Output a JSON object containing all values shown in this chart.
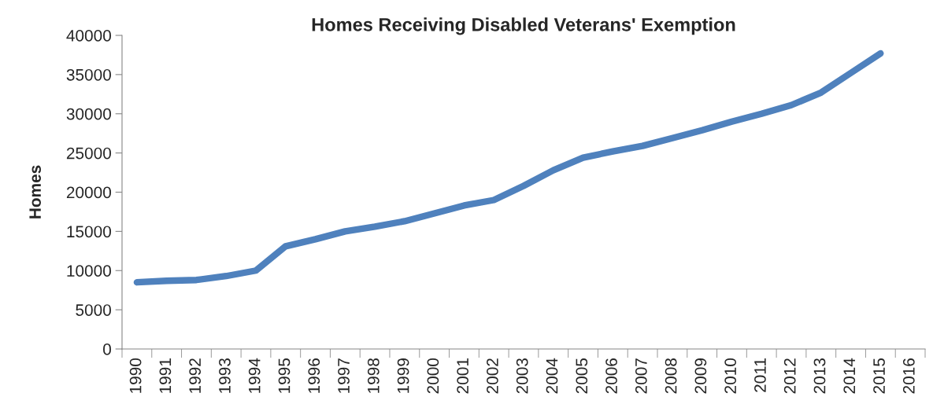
{
  "chart_data": {
    "type": "line",
    "title": "Homes Receiving Disabled Veterans' Exemption",
    "ylabel": "Homes",
    "categories": [
      "1990",
      "1991",
      "1992",
      "1993",
      "1994",
      "1995",
      "1996",
      "1997",
      "1998",
      "1999",
      "2000",
      "2001",
      "2002",
      "2003",
      "2004",
      "2005",
      "2006",
      "2007",
      "2008",
      "2009",
      "2010",
      "2011",
      "2012",
      "2013",
      "2014",
      "2015",
      "2016"
    ],
    "series": [
      {
        "color": "#4f81bd",
        "values": [
          8500,
          8700,
          8800,
          9300,
          10000,
          13100,
          14000,
          15000,
          15600,
          16300,
          17300,
          18300,
          19000,
          20800,
          22800,
          24400,
          25200,
          25900,
          26900,
          27900,
          29000,
          30000,
          31100,
          32700,
          35200,
          37700,
          null
        ]
      }
    ],
    "ylim": [
      0,
      40000
    ],
    "yticks": [
      0,
      5000,
      10000,
      15000,
      20000,
      25000,
      30000,
      35000,
      40000
    ],
    "grid": false,
    "legend": false,
    "marker": "none",
    "line_style": "solid"
  }
}
